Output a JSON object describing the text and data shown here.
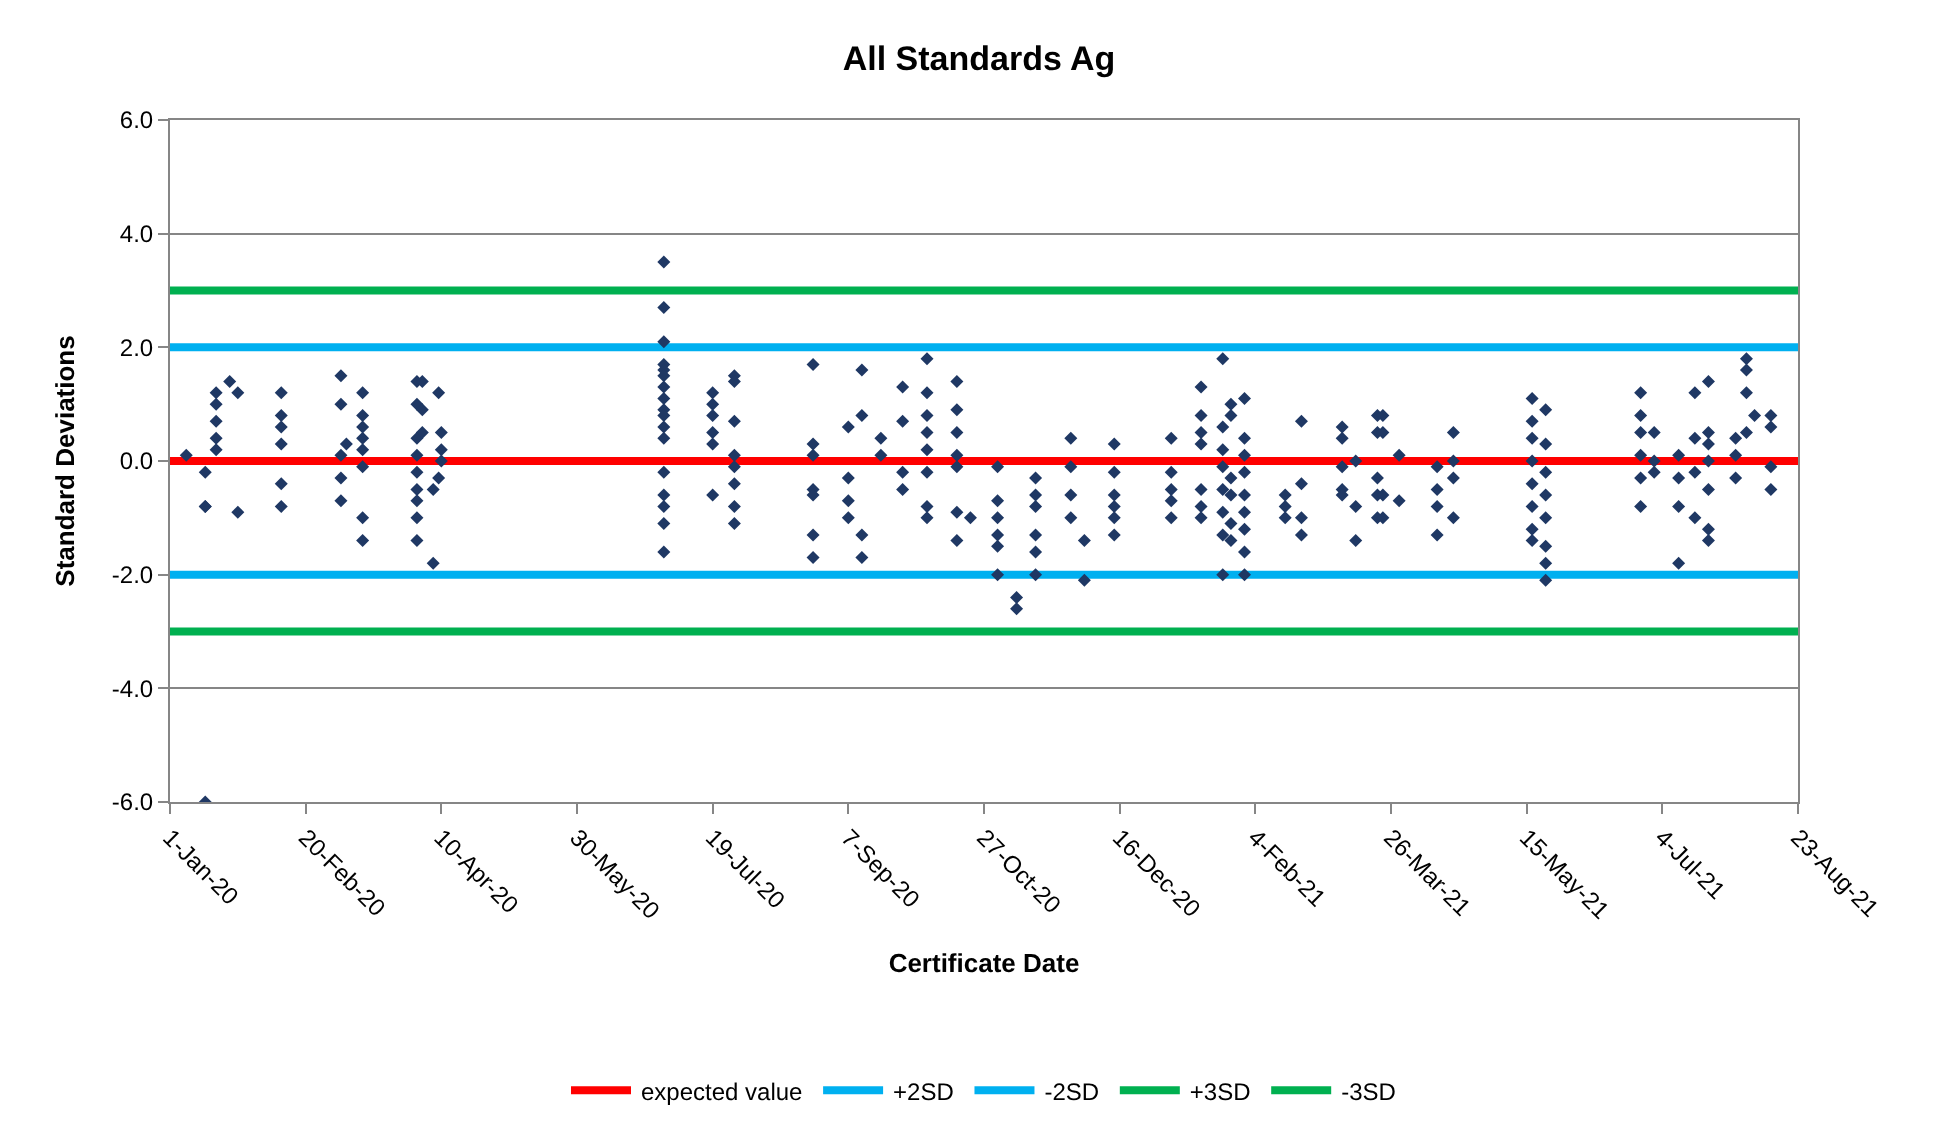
{
  "chart_data": {
    "type": "scatter",
    "title": "All Standards Ag",
    "xlabel": "Certificate Date",
    "ylabel": "Standard Deviations",
    "xlim": [
      "2020-01-01",
      "2021-08-23"
    ],
    "xticks": [
      {
        "value": "2020-01-01",
        "label": "1-Jan-20"
      },
      {
        "value": "2020-02-20",
        "label": "20-Feb-20"
      },
      {
        "value": "2020-04-10",
        "label": "10-Apr-20"
      },
      {
        "value": "2020-05-30",
        "label": "30-May-20"
      },
      {
        "value": "2020-07-19",
        "label": "19-Jul-20"
      },
      {
        "value": "2020-09-07",
        "label": "7-Sep-20"
      },
      {
        "value": "2020-10-27",
        "label": "27-Oct-20"
      },
      {
        "value": "2020-12-16",
        "label": "16-Dec-20"
      },
      {
        "value": "2021-02-04",
        "label": "4-Feb-21"
      },
      {
        "value": "2021-03-26",
        "label": "26-Mar-21"
      },
      {
        "value": "2021-05-15",
        "label": "15-May-21"
      },
      {
        "value": "2021-07-04",
        "label": "4-Jul-21"
      },
      {
        "value": "2021-08-23",
        "label": "23-Aug-21"
      }
    ],
    "ylim": [
      -6,
      6
    ],
    "yticks": [
      {
        "value": -6,
        "label": "-6.0"
      },
      {
        "value": -4,
        "label": "-4.0"
      },
      {
        "value": -2,
        "label": "-2.0"
      },
      {
        "value": 0,
        "label": "0.0"
      },
      {
        "value": 2,
        "label": "2.0"
      },
      {
        "value": 4,
        "label": "4.0"
      },
      {
        "value": 6,
        "label": "6.0"
      }
    ],
    "grid": "y",
    "legend": "bottom",
    "series": [
      {
        "marker": "diamond",
        "color": "#1f3864",
        "x": [
          "2020-01-07",
          "2020-01-14",
          "2020-01-14",
          "2020-01-14",
          "2020-01-14",
          "2020-01-18",
          "2020-01-18",
          "2020-01-18",
          "2020-01-18",
          "2020-01-18",
          "2020-01-23",
          "2020-01-26",
          "2020-01-26",
          "2020-02-11",
          "2020-02-11",
          "2020-02-11",
          "2020-02-11",
          "2020-02-11",
          "2020-02-11",
          "2020-03-04",
          "2020-03-04",
          "2020-03-04",
          "2020-03-04",
          "2020-03-04",
          "2020-03-06",
          "2020-03-12",
          "2020-03-12",
          "2020-03-12",
          "2020-03-12",
          "2020-03-12",
          "2020-03-12",
          "2020-03-12",
          "2020-03-12",
          "2020-04-01",
          "2020-04-01",
          "2020-04-01",
          "2020-04-01",
          "2020-04-01",
          "2020-04-01",
          "2020-04-01",
          "2020-04-01",
          "2020-04-01",
          "2020-04-03",
          "2020-04-03",
          "2020-04-03",
          "2020-04-07",
          "2020-04-07",
          "2020-04-09",
          "2020-04-09",
          "2020-04-10",
          "2020-04-10",
          "2020-04-10",
          "2020-07-01",
          "2020-07-01",
          "2020-07-01",
          "2020-07-01",
          "2020-07-01",
          "2020-07-01",
          "2020-07-01",
          "2020-07-01",
          "2020-07-01",
          "2020-07-01",
          "2020-07-01",
          "2020-07-01",
          "2020-07-01",
          "2020-07-01",
          "2020-07-01",
          "2020-07-01",
          "2020-07-01",
          "2020-07-19",
          "2020-07-19",
          "2020-07-19",
          "2020-07-19",
          "2020-07-19",
          "2020-07-19",
          "2020-07-27",
          "2020-07-27",
          "2020-07-27",
          "2020-07-27",
          "2020-07-27",
          "2020-07-27",
          "2020-07-27",
          "2020-07-27",
          "2020-08-25",
          "2020-08-25",
          "2020-08-25",
          "2020-08-25",
          "2020-08-25",
          "2020-08-25",
          "2020-08-25",
          "2020-09-07",
          "2020-09-07",
          "2020-09-07",
          "2020-09-07",
          "2020-09-12",
          "2020-09-12",
          "2020-09-12",
          "2020-09-12",
          "2020-09-19",
          "2020-09-19",
          "2020-09-27",
          "2020-09-27",
          "2020-09-27",
          "2020-09-27",
          "2020-10-06",
          "2020-10-06",
          "2020-10-06",
          "2020-10-06",
          "2020-10-06",
          "2020-10-06",
          "2020-10-06",
          "2020-10-06",
          "2020-10-17",
          "2020-10-17",
          "2020-10-17",
          "2020-10-17",
          "2020-10-17",
          "2020-10-17",
          "2020-10-17",
          "2020-10-22",
          "2020-11-01",
          "2020-11-01",
          "2020-11-01",
          "2020-11-01",
          "2020-11-01",
          "2020-11-01",
          "2020-11-08",
          "2020-11-08",
          "2020-11-15",
          "2020-11-15",
          "2020-11-15",
          "2020-11-15",
          "2020-11-15",
          "2020-11-15",
          "2020-11-28",
          "2020-11-28",
          "2020-11-28",
          "2020-11-28",
          "2020-12-03",
          "2020-12-03",
          "2020-12-14",
          "2020-12-14",
          "2020-12-14",
          "2020-12-14",
          "2020-12-14",
          "2020-12-14",
          "2021-01-04",
          "2021-01-04",
          "2021-01-04",
          "2021-01-04",
          "2021-01-04",
          "2021-01-15",
          "2021-01-15",
          "2021-01-15",
          "2021-01-15",
          "2021-01-15",
          "2021-01-15",
          "2021-01-15",
          "2021-01-23",
          "2021-01-23",
          "2021-01-23",
          "2021-01-23",
          "2021-01-23",
          "2021-01-23",
          "2021-01-23",
          "2021-01-23",
          "2021-01-26",
          "2021-01-26",
          "2021-01-26",
          "2021-01-26",
          "2021-01-26",
          "2021-01-26",
          "2021-01-31",
          "2021-01-31",
          "2021-01-31",
          "2021-01-31",
          "2021-01-31",
          "2021-01-31",
          "2021-01-31",
          "2021-01-31",
          "2021-01-31",
          "2021-02-15",
          "2021-02-15",
          "2021-02-15",
          "2021-02-21",
          "2021-02-21",
          "2021-02-21",
          "2021-02-21",
          "2021-03-08",
          "2021-03-08",
          "2021-03-08",
          "2021-03-08",
          "2021-03-08",
          "2021-03-13",
          "2021-03-13",
          "2021-03-13",
          "2021-03-21",
          "2021-03-21",
          "2021-03-21",
          "2021-03-21",
          "2021-03-21",
          "2021-03-23",
          "2021-03-23",
          "2021-03-23",
          "2021-03-23",
          "2021-03-29",
          "2021-03-29",
          "2021-04-12",
          "2021-04-12",
          "2021-04-12",
          "2021-04-12",
          "2021-04-18",
          "2021-04-18",
          "2021-04-18",
          "2021-04-18",
          "2021-05-17",
          "2021-05-17",
          "2021-05-17",
          "2021-05-17",
          "2021-05-17",
          "2021-05-17",
          "2021-05-17",
          "2021-05-17",
          "2021-05-22",
          "2021-05-22",
          "2021-05-22",
          "2021-05-22",
          "2021-05-22",
          "2021-05-22",
          "2021-05-22",
          "2021-05-22",
          "2021-06-26",
          "2021-06-26",
          "2021-06-26",
          "2021-06-26",
          "2021-06-26",
          "2021-06-26",
          "2021-07-01",
          "2021-07-01",
          "2021-07-01",
          "2021-07-10",
          "2021-07-10",
          "2021-07-10",
          "2021-07-10",
          "2021-07-16",
          "2021-07-16",
          "2021-07-16",
          "2021-07-16",
          "2021-07-21",
          "2021-07-21",
          "2021-07-21",
          "2021-07-21",
          "2021-07-21",
          "2021-07-21",
          "2021-07-21",
          "2021-07-31",
          "2021-07-31",
          "2021-07-31",
          "2021-08-04",
          "2021-08-04",
          "2021-08-04",
          "2021-08-04",
          "2021-08-07",
          "2021-08-13",
          "2021-08-13",
          "2021-08-13",
          "2021-08-13"
        ],
        "values": [
          0.1,
          -6.0,
          -0.2,
          -0.8,
          -0.8,
          1.2,
          1.0,
          0.7,
          0.4,
          0.2,
          1.4,
          1.2,
          -0.9,
          1.2,
          0.8,
          0.6,
          0.3,
          -0.4,
          -0.8,
          1.5,
          1.0,
          0.1,
          -0.3,
          -0.7,
          0.3,
          1.2,
          0.8,
          0.6,
          0.4,
          0.2,
          -0.1,
          -1.0,
          -1.4,
          1.4,
          1.0,
          0.4,
          0.1,
          -0.2,
          -0.5,
          -0.7,
          -1.0,
          -1.4,
          1.4,
          0.9,
          0.5,
          -1.8,
          -0.5,
          1.2,
          -0.3,
          0.5,
          0.2,
          0.0,
          3.5,
          2.7,
          2.1,
          1.7,
          1.6,
          1.5,
          1.3,
          1.1,
          0.9,
          0.8,
          0.6,
          0.4,
          -0.2,
          -0.6,
          -0.8,
          -1.1,
          -1.6,
          1.2,
          1.0,
          0.8,
          0.5,
          0.3,
          -0.6,
          1.5,
          1.4,
          0.7,
          0.1,
          -0.1,
          -0.4,
          -0.8,
          -1.1,
          1.7,
          0.3,
          0.1,
          -0.5,
          -0.6,
          -1.3,
          -1.7,
          0.6,
          -0.3,
          -0.7,
          -1.0,
          1.6,
          0.8,
          -1.3,
          -1.7,
          0.4,
          0.1,
          1.3,
          0.7,
          -0.2,
          -0.5,
          1.8,
          1.2,
          0.8,
          0.5,
          0.2,
          -0.2,
          -0.8,
          -1.0,
          1.4,
          0.9,
          0.5,
          0.1,
          -0.1,
          -0.9,
          -1.4,
          -1.0,
          -0.1,
          -0.7,
          -1.0,
          -1.3,
          -1.5,
          -2.0,
          -2.6,
          -2.4,
          -0.3,
          -0.6,
          -0.8,
          -1.3,
          -1.6,
          -2.0,
          0.4,
          -0.1,
          -0.6,
          -1.0,
          -1.4,
          -2.1,
          0.3,
          -0.2,
          -0.6,
          -0.8,
          -1.0,
          -1.3,
          0.4,
          -0.2,
          -0.5,
          -0.7,
          -1.0,
          1.3,
          0.8,
          0.5,
          0.3,
          -0.5,
          -0.8,
          -1.0,
          1.8,
          0.6,
          0.2,
          -0.1,
          -0.5,
          -0.9,
          -1.3,
          -2.0,
          1.0,
          0.8,
          -0.3,
          -0.6,
          -1.1,
          -1.4,
          1.1,
          0.4,
          0.1,
          -0.2,
          -0.6,
          -0.9,
          -1.2,
          -1.6,
          -2.0,
          -0.6,
          -0.8,
          -1.0,
          0.7,
          -0.4,
          -1.0,
          -1.3,
          0.6,
          0.4,
          -0.1,
          -0.5,
          -0.6,
          0.0,
          -0.8,
          -1.4,
          0.8,
          0.5,
          -0.3,
          -0.6,
          -1.0,
          0.8,
          0.5,
          -0.6,
          -1.0,
          0.1,
          -0.7,
          -0.1,
          -0.5,
          -0.8,
          -1.3,
          0.5,
          0.0,
          -0.3,
          -1.0,
          1.1,
          0.7,
          0.4,
          0.0,
          -0.4,
          -0.8,
          -1.2,
          -1.4,
          0.9,
          0.3,
          -0.2,
          -0.6,
          -1.0,
          -1.5,
          -1.8,
          -2.1,
          1.2,
          0.8,
          0.5,
          0.1,
          -0.3,
          -0.8,
          0.5,
          0.0,
          -0.2,
          0.1,
          -0.3,
          -0.8,
          -1.8,
          1.2,
          0.4,
          -0.2,
          -1.0,
          1.4,
          0.5,
          0.3,
          0.0,
          -0.5,
          -1.2,
          -1.4,
          0.4,
          0.1,
          -0.3,
          1.8,
          1.6,
          1.2,
          0.5,
          0.8,
          0.8,
          0.6,
          -0.1,
          -0.5
        ]
      },
      {
        "type": "line",
        "marker": "none",
        "name": "expected value",
        "color": "#ff0000",
        "x": [
          "2020-01-01",
          "2021-08-23"
        ],
        "values": [
          0,
          0
        ]
      },
      {
        "type": "line",
        "marker": "none",
        "name": "+2SD",
        "color": "#00b0f0",
        "x": [
          "2020-01-01",
          "2021-08-23"
        ],
        "values": [
          2,
          2
        ]
      },
      {
        "type": "line",
        "marker": "none",
        "name": "-2SD",
        "color": "#00b0f0",
        "x": [
          "2020-01-01",
          "2021-08-23"
        ],
        "values": [
          -2,
          -2
        ]
      },
      {
        "type": "line",
        "marker": "none",
        "name": "+3SD",
        "color": "#00b050",
        "x": [
          "2020-01-01",
          "2021-08-23"
        ],
        "values": [
          3,
          3
        ]
      },
      {
        "type": "line",
        "marker": "none",
        "name": "-3SD",
        "color": "#00b050",
        "x": [
          "2020-01-01",
          "2021-08-23"
        ],
        "values": [
          -3,
          -3
        ]
      }
    ]
  }
}
